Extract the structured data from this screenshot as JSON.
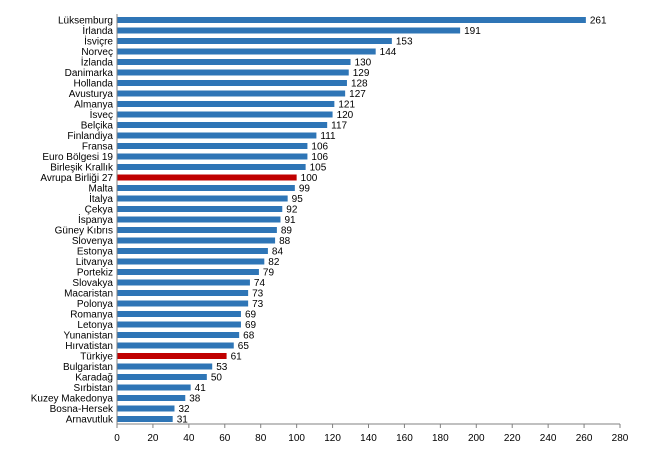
{
  "chart_data": {
    "type": "bar",
    "orientation": "horizontal",
    "title": "",
    "xlabel": "",
    "ylabel": "",
    "xlim": [
      0,
      280
    ],
    "x_ticks": [
      0,
      20,
      40,
      60,
      80,
      100,
      120,
      140,
      160,
      180,
      200,
      220,
      240,
      260,
      280
    ],
    "grid": false,
    "legend": "none",
    "colors": {
      "default": "#2e75b6",
      "highlight": "#c00000"
    },
    "categories": [
      "Lüksemburg",
      "İrlanda",
      "İsviçre",
      "Norveç",
      "İzlanda",
      "Danimarka",
      "Hollanda",
      "Avusturya",
      "Almanya",
      "İsveç",
      "Belçika",
      "Finlandiya",
      "Fransa",
      "Euro Bölgesi 19",
      "Birleşik Krallık",
      "Avrupa Birliği 27",
      "Malta",
      "İtalya",
      "Çekya",
      "İspanya",
      "Güney Kıbrıs",
      "Slovenya",
      "Estonya",
      "Litvanya",
      "Portekiz",
      "Slovakya",
      "Macaristan",
      "Polonya",
      "Romanya",
      "Letonya",
      "Yunanistan",
      "Hırvatistan",
      "Türkiye",
      "Bulgaristan",
      "Karadağ",
      "Sırbistan",
      "Kuzey Makedonya",
      "Bosna-Hersek",
      "Arnavutluk"
    ],
    "values": [
      261,
      191,
      153,
      144,
      130,
      129,
      128,
      127,
      121,
      120,
      117,
      111,
      106,
      106,
      105,
      100,
      99,
      95,
      92,
      91,
      89,
      88,
      84,
      82,
      79,
      74,
      73,
      73,
      69,
      69,
      68,
      65,
      61,
      53,
      50,
      41,
      38,
      32,
      31
    ],
    "highlighted": [
      "Avrupa Birliği 27",
      "Türkiye"
    ]
  }
}
